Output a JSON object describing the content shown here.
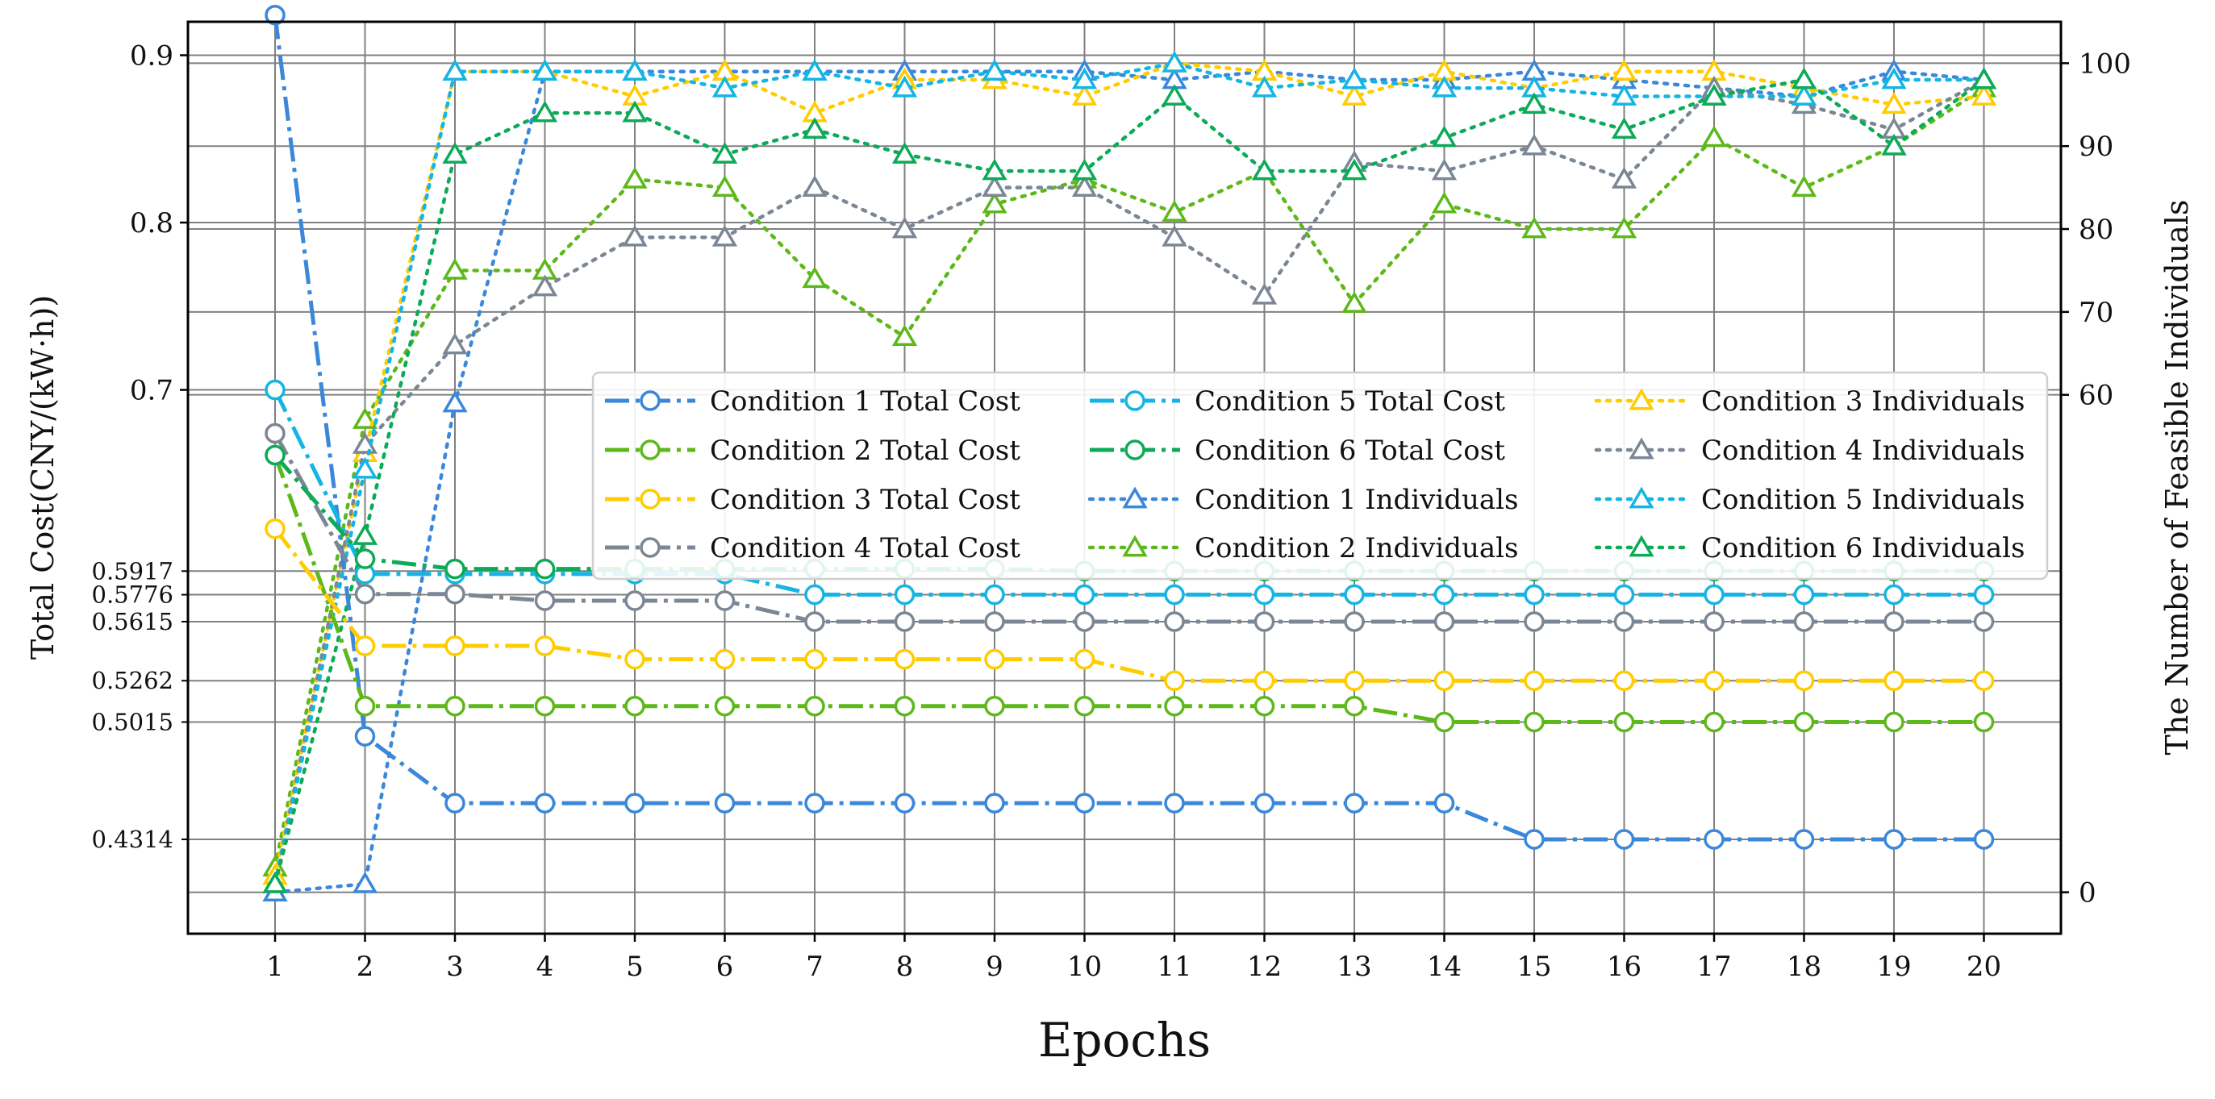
{
  "chart_data": {
    "type": "line",
    "xlabel": "Epochs",
    "ylabel_left": "Total Cost(CNY/(kW·h))",
    "ylabel_right": "The Number of Feasible Individuals",
    "x": [
      1,
      2,
      3,
      4,
      5,
      6,
      7,
      8,
      9,
      10,
      11,
      12,
      13,
      14,
      15,
      16,
      17,
      18,
      19,
      20
    ],
    "left_axis": {
      "ylim": [
        0.375,
        0.92
      ],
      "major_ticks": [
        "0.7",
        "0.8",
        "0.9"
      ],
      "minor_ticks": [
        "0.4314",
        "0.5015",
        "0.5262",
        "0.5615",
        "0.5776",
        "0.5917"
      ]
    },
    "right_axis": {
      "ylim": [
        -5,
        105
      ],
      "ticks": [
        "0",
        "60",
        "70",
        "80",
        "90",
        "100"
      ]
    },
    "grid": true,
    "legend": "center-right",
    "colors": {
      "c1": "#3b87d9",
      "c2": "#5db81a",
      "c3": "#ffcc00",
      "c4": "#7b8794",
      "c5": "#15b5e3",
      "c6": "#0daa58"
    },
    "series": [
      {
        "name": "Condition 1 Total Cost",
        "axis": "left",
        "kind": "cost",
        "color_key": "c1",
        "values": [
          0.924,
          0.493,
          0.453,
          0.453,
          0.453,
          0.453,
          0.453,
          0.453,
          0.453,
          0.453,
          0.453,
          0.453,
          0.453,
          0.453,
          0.4314,
          0.4314,
          0.4314,
          0.4314,
          0.4314,
          0.4314
        ]
      },
      {
        "name": "Condition 2 Total Cost",
        "axis": "left",
        "kind": "cost",
        "color_key": "c2",
        "values": [
          0.661,
          0.511,
          0.511,
          0.511,
          0.511,
          0.511,
          0.511,
          0.511,
          0.511,
          0.511,
          0.511,
          0.511,
          0.511,
          0.5015,
          0.5015,
          0.5015,
          0.5015,
          0.5015,
          0.5015,
          0.5015
        ]
      },
      {
        "name": "Condition 3 Total Cost",
        "axis": "left",
        "kind": "cost",
        "color_key": "c3",
        "values": [
          0.617,
          0.547,
          0.547,
          0.547,
          0.539,
          0.539,
          0.539,
          0.539,
          0.539,
          0.539,
          0.5262,
          0.5262,
          0.5262,
          0.5262,
          0.5262,
          0.5262,
          0.5262,
          0.5262,
          0.5262,
          0.5262
        ]
      },
      {
        "name": "Condition 4 Total Cost",
        "axis": "left",
        "kind": "cost",
        "color_key": "c4",
        "values": [
          0.674,
          0.578,
          0.578,
          0.574,
          0.574,
          0.574,
          0.5615,
          0.5615,
          0.5615,
          0.5615,
          0.5615,
          0.5615,
          0.5615,
          0.5615,
          0.5615,
          0.5615,
          0.5615,
          0.5615,
          0.5615,
          0.5615
        ]
      },
      {
        "name": "Condition 5 Total Cost",
        "axis": "left",
        "kind": "cost",
        "color_key": "c5",
        "values": [
          0.7,
          0.59,
          0.59,
          0.59,
          0.59,
          0.59,
          0.5776,
          0.5776,
          0.5776,
          0.5776,
          0.5776,
          0.5776,
          0.5776,
          0.5776,
          0.5776,
          0.5776,
          0.5776,
          0.5776,
          0.5776,
          0.5776
        ]
      },
      {
        "name": "Condition 6 Total Cost",
        "axis": "left",
        "kind": "cost",
        "color_key": "c6",
        "values": [
          0.661,
          0.599,
          0.593,
          0.593,
          0.593,
          0.593,
          0.593,
          0.593,
          0.593,
          0.5917,
          0.5917,
          0.5917,
          0.5917,
          0.5917,
          0.5917,
          0.5917,
          0.5917,
          0.5917,
          0.5917,
          0.5917
        ]
      },
      {
        "name": "Condition 1 Individuals",
        "axis": "right",
        "kind": "ind",
        "color_key": "c1",
        "values": [
          0,
          1,
          59,
          99,
          99,
          99,
          99,
          99,
          99,
          99,
          98,
          99,
          98,
          98,
          99,
          98,
          97,
          96,
          99,
          98
        ]
      },
      {
        "name": "Condition 2 Individuals",
        "axis": "right",
        "kind": "ind",
        "color_key": "c2",
        "values": [
          3,
          57,
          75,
          75,
          86,
          85,
          74,
          67,
          83,
          86,
          82,
          87,
          71,
          83,
          80,
          80,
          91,
          85,
          90,
          97
        ]
      },
      {
        "name": "Condition 3 Individuals",
        "axis": "right",
        "kind": "ind",
        "color_key": "c3",
        "values": [
          2,
          53,
          99,
          99,
          96,
          99,
          94,
          98,
          98,
          96,
          100,
          99,
          96,
          99,
          97,
          99,
          99,
          97,
          95,
          96
        ]
      },
      {
        "name": "Condition 4 Individuals",
        "axis": "right",
        "kind": "ind",
        "color_key": "c4",
        "values": [
          1,
          54,
          66,
          73,
          79,
          79,
          85,
          80,
          85,
          85,
          79,
          72,
          88,
          87,
          90,
          86,
          97,
          95,
          92,
          98
        ]
      },
      {
        "name": "Condition 5 Individuals",
        "axis": "right",
        "kind": "ind",
        "color_key": "c5",
        "values": [
          1,
          51,
          99,
          99,
          99,
          97,
          99,
          97,
          99,
          98,
          100,
          97,
          98,
          97,
          97,
          96,
          96,
          96,
          98,
          98
        ]
      },
      {
        "name": "Condition 6 Individuals",
        "axis": "right",
        "kind": "ind",
        "color_key": "c6",
        "values": [
          1,
          43,
          89,
          94,
          94,
          89,
          92,
          89,
          87,
          87,
          96,
          87,
          87,
          91,
          95,
          92,
          96,
          98,
          90,
          98
        ]
      }
    ]
  }
}
